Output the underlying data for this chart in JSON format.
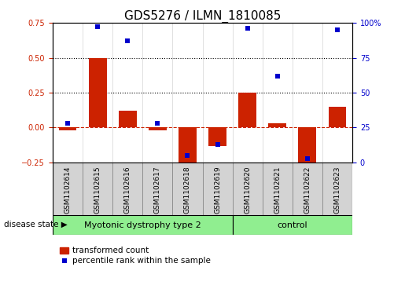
{
  "title": "GDS5276 / ILMN_1810085",
  "samples": [
    "GSM1102614",
    "GSM1102615",
    "GSM1102616",
    "GSM1102617",
    "GSM1102618",
    "GSM1102619",
    "GSM1102620",
    "GSM1102621",
    "GSM1102622",
    "GSM1102623"
  ],
  "red_values": [
    -0.02,
    0.5,
    0.12,
    -0.02,
    -0.27,
    -0.13,
    0.25,
    0.03,
    -0.27,
    0.15
  ],
  "blue_values": [
    28,
    97,
    87,
    28,
    5,
    13,
    96,
    62,
    3,
    95
  ],
  "left_ylim": [
    -0.25,
    0.75
  ],
  "right_ylim": [
    0,
    100
  ],
  "left_yticks": [
    -0.25,
    0,
    0.25,
    0.5,
    0.75
  ],
  "right_yticks": [
    0,
    25,
    50,
    75,
    100
  ],
  "dotted_lines": [
    0.25,
    0.5
  ],
  "dashed_zero_color": "#cc2200",
  "group1_label": "Myotonic dystrophy type 2",
  "group1_indices": [
    0,
    1,
    2,
    3,
    4,
    5
  ],
  "group2_label": "control",
  "group2_indices": [
    6,
    7,
    8,
    9
  ],
  "disease_label": "disease state",
  "legend_red": "transformed count",
  "legend_blue": "percentile rank within the sample",
  "bar_color": "#cc2200",
  "dot_color": "#0000cc",
  "group_color": "#90ee90",
  "sample_bg_color": "#d3d3d3",
  "bar_width": 0.6,
  "title_fontsize": 11,
  "tick_fontsize": 7,
  "sample_fontsize": 6.5,
  "group_fontsize": 8,
  "legend_fontsize": 7.5
}
